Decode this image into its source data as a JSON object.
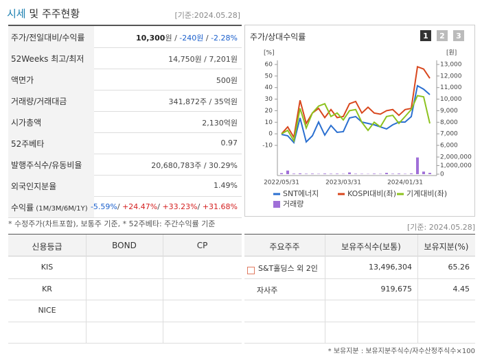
{
  "header": {
    "title": "시세",
    "title_rest": "및 주주현황",
    "date": "[기준:2024.05.28]"
  },
  "quote": {
    "rows": [
      {
        "label": [
          {
            "text": "주가/전일대비/수익률"
          }
        ],
        "value": [
          {
            "text": "10,300",
            "bold": true
          },
          {
            "text": "원"
          },
          {
            "text": " / "
          },
          {
            "text": "-240원",
            "color": "#1a5fcc"
          },
          {
            "text": " / "
          },
          {
            "text": "-2.28%",
            "color": "#1a5fcc"
          }
        ]
      },
      {
        "label": [
          {
            "text": "52Weeks 최고/최저"
          }
        ],
        "value": [
          {
            "text": "14,750원 / 7,201원"
          }
        ]
      },
      {
        "label": [
          {
            "text": "액면가"
          }
        ],
        "value": [
          {
            "text": "500원"
          }
        ]
      },
      {
        "label": [
          {
            "text": "거래량/거래대금"
          }
        ],
        "value": [
          {
            "text": "341,872주 / 35억원"
          }
        ]
      },
      {
        "label": [
          {
            "text": "시가총액"
          }
        ],
        "value": [
          {
            "text": "2,130억원"
          }
        ]
      },
      {
        "label": [
          {
            "text": "52주베타"
          }
        ],
        "value": [
          {
            "text": "0.97"
          }
        ]
      },
      {
        "label": [
          {
            "text": "발행주식수/유동비율"
          }
        ],
        "value": [
          {
            "text": "20,680,783주 / 30.29%"
          }
        ]
      },
      {
        "label": [
          {
            "text": "외국인지분율"
          }
        ],
        "value": [
          {
            "text": "1.49%"
          }
        ]
      },
      {
        "label": [
          {
            "text": "수익률"
          },
          {
            "text": " (1M/3M/6M/1Y)",
            "small": true
          }
        ],
        "value": [
          {
            "text": "-5.59%",
            "color": "#1a5fcc"
          },
          {
            "text": "/ "
          },
          {
            "text": "+24.47%",
            "color": "#d42020"
          },
          {
            "text": "/ "
          },
          {
            "text": "+33.23%",
            "color": "#d42020"
          },
          {
            "text": "/ "
          },
          {
            "text": "+31.68%",
            "color": "#d42020"
          }
        ]
      }
    ],
    "note": "* 수정주가(차트포함), 보통주 기준, * 52주베타: 주간수익률 기준"
  },
  "chart_data": {
    "type": "line",
    "title": "주가/상대수익률",
    "buttons": [
      "1",
      "2",
      "3"
    ],
    "ylabel": "[%]",
    "y2label": "[원]",
    "categories": [
      "2022/05/31",
      null,
      null,
      null,
      null,
      null,
      null,
      null,
      null,
      null,
      "2023/03/31",
      null,
      null,
      null,
      null,
      null,
      null,
      null,
      null,
      null,
      "2024/01/31",
      null,
      null,
      null,
      null
    ],
    "ylim": [
      -10,
      60
    ],
    "yticks": [
      -10,
      0,
      10,
      20,
      30,
      40,
      50,
      60
    ],
    "y2lim": [
      6000,
      13000
    ],
    "y2ticks": [
      {
        "value": 6000,
        "label": "6,000"
      },
      {
        "value": 7000,
        "label": "7,000"
      },
      {
        "value": 8000,
        "label": "8,000"
      },
      {
        "value": 9000,
        "label": "9,000"
      },
      {
        "value": 10000,
        "label": "10,000"
      },
      {
        "value": 11000,
        "label": "11,000"
      },
      {
        "value": 12000,
        "label": "12,000"
      },
      {
        "value": 13000,
        "label": "13,000"
      }
    ],
    "y3lim": [
      0,
      2000000
    ],
    "y3ticks": [
      0,
      {
        "value": 1000000,
        "label": "1,000,000"
      },
      {
        "value": 2000000,
        "label": "2,000,000"
      }
    ],
    "series": [
      {
        "name": "SNT에너지",
        "color": "#2a6fd0",
        "axis": "y2",
        "values": [
          6950,
          6830,
          6240,
          8370,
          6300,
          6830,
          8020,
          6890,
          7720,
          7130,
          7190,
          8370,
          8490,
          8020,
          7900,
          7780,
          7600,
          7420,
          7780,
          8020,
          8020,
          8490,
          11160,
          10860,
          10390
        ]
      },
      {
        "name": "KOSPI대비(좌)",
        "color": "#d8461c",
        "values": [
          0,
          6,
          -3,
          29,
          9,
          18,
          22,
          14,
          21,
          14,
          15,
          26,
          28,
          18,
          23,
          18,
          17,
          20,
          21,
          16,
          21,
          22,
          58,
          56,
          48
        ]
      },
      {
        "name": "기계대비(좌)",
        "color": "#8cc21e",
        "values": [
          0,
          3,
          -6,
          22,
          5,
          18,
          24,
          26,
          15,
          18,
          12,
          20,
          21,
          10,
          3,
          10,
          6,
          15,
          16,
          9,
          15,
          21,
          33,
          32,
          9
        ]
      },
      {
        "name": "거래량",
        "color": "#a070d8",
        "axis": "y3",
        "kind": "bar",
        "values": [
          120000,
          420000,
          60000,
          90000,
          50000,
          60000,
          40000,
          70000,
          50000,
          60000,
          40000,
          200000,
          50000,
          40000,
          30000,
          60000,
          40000,
          150000,
          50000,
          70000,
          40000,
          90000,
          1950000,
          300000,
          150000
        ]
      }
    ]
  },
  "chart_date": "[기준: 2024.05.28]",
  "credit": {
    "headers": [
      "신용등급",
      "BOND",
      "CP"
    ],
    "rows": [
      [
        "KIS"
      ],
      [
        "KR"
      ],
      [
        "NICE"
      ]
    ]
  },
  "shareholders": {
    "headers": [
      "주요주주",
      "보유주식수(보통)",
      "보유지분(%)"
    ],
    "rows": [
      [
        "S&T홀딩스 외 2인",
        "13,496,304",
        "65.26"
      ],
      [
        "자사주",
        "919,675",
        "4.45"
      ]
    ],
    "note": "* 보유지분 : 보유지분주식수/자수산정주식수×100"
  }
}
